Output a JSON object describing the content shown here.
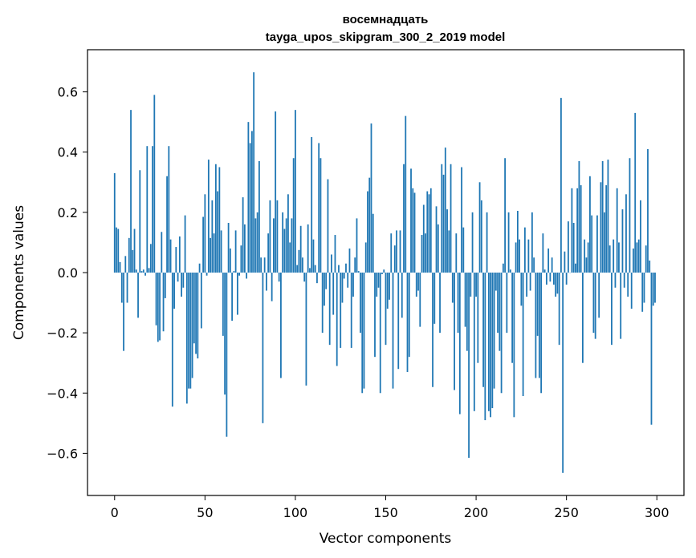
{
  "chart_data": {
    "type": "bar",
    "title_line1": "восемнадцать",
    "title_line2": "tayga_upos_skipgram_300_2_2019 model",
    "xlabel": "Vector components",
    "ylabel": "Components values",
    "xlim": [
      -15,
      315
    ],
    "ylim": [
      -0.74,
      0.74
    ],
    "xticks": [
      0,
      50,
      100,
      150,
      200,
      250,
      300
    ],
    "yticks": [
      -0.6,
      -0.4,
      -0.2,
      0.0,
      0.2,
      0.4,
      0.6
    ],
    "ytick_labels": [
      "−0.6",
      "−0.4",
      "−0.2",
      "0.0",
      "0.2",
      "0.4",
      "0.6"
    ],
    "xtick_labels": [
      "0",
      "50",
      "100",
      "150",
      "200",
      "250",
      "300"
    ],
    "bar_color": "#1f77b4",
    "values": [
      0.33,
      0.15,
      0.145,
      0.035,
      -0.1,
      -0.26,
      0.055,
      -0.1,
      0.115,
      0.54,
      0.075,
      0.145,
      0.01,
      -0.15,
      0.34,
      0.005,
      0.01,
      -0.01,
      0.42,
      0.015,
      0.095,
      0.42,
      0.59,
      -0.175,
      -0.23,
      -0.225,
      0.135,
      -0.195,
      -0.085,
      0.32,
      0.42,
      0.11,
      -0.445,
      -0.12,
      0.085,
      -0.03,
      0.12,
      -0.08,
      -0.05,
      0.19,
      -0.435,
      -0.385,
      -0.385,
      -0.35,
      -0.235,
      -0.27,
      -0.285,
      0.03,
      -0.185,
      0.185,
      0.26,
      -0.01,
      0.375,
      0.115,
      0.24,
      0.13,
      0.36,
      0.27,
      0.35,
      0.14,
      -0.21,
      -0.405,
      -0.545,
      0.165,
      0.08,
      -0.16,
      0.005,
      0.14,
      -0.14,
      -0.01,
      0.09,
      0.25,
      0.16,
      -0.02,
      0.5,
      0.43,
      0.47,
      0.665,
      0.18,
      0.2,
      0.37,
      0.05,
      -0.5,
      0.05,
      -0.06,
      0.13,
      0.24,
      -0.095,
      0.18,
      0.535,
      0.24,
      -0.03,
      -0.35,
      0.2,
      0.145,
      0.18,
      0.26,
      0.1,
      0.18,
      0.38,
      0.54,
      0.025,
      0.075,
      0.155,
      0.05,
      -0.03,
      -0.375,
      0.16,
      0.015,
      0.45,
      0.11,
      0.025,
      -0.035,
      0.43,
      0.38,
      -0.2,
      -0.11,
      -0.055,
      0.31,
      -0.24,
      0.06,
      -0.14,
      0.125,
      -0.31,
      0.025,
      -0.25,
      -0.1,
      -0.02,
      0.03,
      -0.05,
      0.08,
      -0.25,
      -0.08,
      0.05,
      0.18,
      0.005,
      -0.2,
      -0.4,
      -0.385,
      0.1,
      0.27,
      0.315,
      0.495,
      0.195,
      -0.28,
      -0.08,
      -0.05,
      -0.4,
      -0.005,
      0.01,
      -0.24,
      -0.12,
      -0.09,
      0.13,
      -0.385,
      0.09,
      0.14,
      -0.32,
      0.14,
      -0.15,
      0.36,
      0.52,
      -0.33,
      -0.28,
      0.345,
      0.28,
      0.265,
      -0.08,
      -0.06,
      -0.18,
      0.125,
      0.225,
      0.13,
      0.27,
      0.26,
      0.28,
      -0.38,
      -0.17,
      0.22,
      0.16,
      -0.2,
      0.36,
      0.325,
      0.415,
      0.21,
      0.14,
      0.36,
      -0.1,
      -0.39,
      0.13,
      -0.2,
      -0.47,
      0.35,
      0.15,
      -0.18,
      -0.26,
      -0.615,
      -0.08,
      0.2,
      -0.46,
      -0.08,
      -0.3,
      0.3,
      0.24,
      -0.38,
      -0.49,
      0.2,
      -0.46,
      -0.48,
      -0.45,
      -0.385,
      -0.06,
      -0.2,
      -0.26,
      -0.4,
      0.03,
      0.38,
      -0.2,
      0.2,
      0.01,
      -0.3,
      -0.48,
      0.1,
      0.205,
      0.11,
      -0.11,
      -0.41,
      0.15,
      -0.08,
      0.11,
      -0.06,
      0.2,
      0.05,
      -0.35,
      -0.21,
      -0.35,
      -0.4,
      0.13,
      0.01,
      -0.04,
      0.08,
      -0.03,
      0.05,
      -0.04,
      -0.08,
      -0.07,
      -0.24,
      0.58,
      -0.665,
      0.07,
      -0.04,
      0.17,
      0.0,
      0.28,
      0.165,
      0.03,
      0.28,
      0.37,
      0.29,
      -0.3,
      0.11,
      0.05,
      0.1,
      0.32,
      0.19,
      -0.2,
      -0.22,
      0.19,
      -0.15,
      0.3,
      0.37,
      0.2,
      0.29,
      0.375,
      0.09,
      -0.24,
      0.11,
      -0.05,
      0.28,
      0.1,
      -0.22,
      0.21,
      -0.05,
      0.26,
      -0.08,
      0.38,
      -0.12,
      0.08,
      0.53,
      0.1,
      0.11,
      0.24,
      -0.13,
      -0.1,
      0.09,
      0.41,
      0.04,
      -0.505,
      -0.11,
      -0.1
    ]
  }
}
